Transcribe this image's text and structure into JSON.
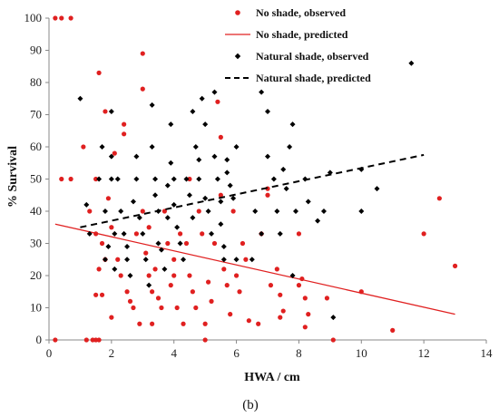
{
  "chart_data": {
    "type": "scatter",
    "xlabel": "HWA / cm",
    "ylabel": "% Survival",
    "caption": "(b)",
    "xlim": [
      0,
      14
    ],
    "ylim": [
      0,
      100
    ],
    "xticks": [
      "0",
      "2",
      "4",
      "6",
      "8",
      "10",
      "12",
      "14"
    ],
    "yticks": [
      "0",
      "10",
      "20",
      "30",
      "40",
      "50",
      "60",
      "70",
      "80",
      "90",
      "100"
    ],
    "grid": false,
    "legend_position": "top-right",
    "colors": {
      "no_shade": "#e02020",
      "natural_shade": "#000000",
      "axis": "#888888"
    },
    "series": [
      {
        "name": "No shade, observed",
        "kind": "points",
        "marker": "circle",
        "points": [
          [
            0.2,
            100
          ],
          [
            0.4,
            100
          ],
          [
            0.7,
            100
          ],
          [
            0.4,
            50
          ],
          [
            0.7,
            50
          ],
          [
            0.2,
            0
          ],
          [
            1.1,
            60
          ],
          [
            1.2,
            0
          ],
          [
            1.3,
            40
          ],
          [
            1.5,
            50
          ],
          [
            1.6,
            83
          ],
          [
            1.4,
            0
          ],
          [
            1.5,
            0
          ],
          [
            1.6,
            0
          ],
          [
            1.5,
            33
          ],
          [
            1.6,
            22
          ],
          [
            1.7,
            14
          ],
          [
            1.8,
            71
          ],
          [
            1.9,
            44
          ],
          [
            1.5,
            14
          ],
          [
            1.7,
            30
          ],
          [
            1.8,
            25
          ],
          [
            2.0,
            35
          ],
          [
            2.0,
            7
          ],
          [
            2.1,
            58
          ],
          [
            2.2,
            25
          ],
          [
            2.3,
            20
          ],
          [
            2.4,
            67
          ],
          [
            2.4,
            64
          ],
          [
            2.5,
            15
          ],
          [
            2.6,
            12
          ],
          [
            2.7,
            10
          ],
          [
            2.8,
            33
          ],
          [
            2.9,
            5
          ],
          [
            3.0,
            89
          ],
          [
            3.0,
            78
          ],
          [
            3.0,
            40
          ],
          [
            3.1,
            27
          ],
          [
            3.2,
            35
          ],
          [
            3.2,
            20
          ],
          [
            3.3,
            15
          ],
          [
            3.3,
            5
          ],
          [
            3.4,
            22
          ],
          [
            3.5,
            13
          ],
          [
            3.6,
            10
          ],
          [
            3.7,
            40
          ],
          [
            3.8,
            30
          ],
          [
            3.9,
            17
          ],
          [
            4.0,
            25
          ],
          [
            4.0,
            20
          ],
          [
            4.1,
            10
          ],
          [
            4.2,
            33
          ],
          [
            4.3,
            5
          ],
          [
            4.4,
            30
          ],
          [
            4.5,
            50
          ],
          [
            4.5,
            20
          ],
          [
            4.6,
            15
          ],
          [
            4.7,
            10
          ],
          [
            4.8,
            40
          ],
          [
            4.9,
            33
          ],
          [
            5.0,
            5
          ],
          [
            5.0,
            0
          ],
          [
            5.1,
            18
          ],
          [
            5.2,
            12
          ],
          [
            5.3,
            30
          ],
          [
            5.4,
            74
          ],
          [
            5.5,
            63
          ],
          [
            5.5,
            45
          ],
          [
            5.6,
            22
          ],
          [
            5.7,
            17
          ],
          [
            5.8,
            8
          ],
          [
            5.9,
            40
          ],
          [
            6.0,
            20
          ],
          [
            6.1,
            15
          ],
          [
            6.2,
            30
          ],
          [
            6.3,
            25
          ],
          [
            6.4,
            6
          ],
          [
            6.7,
            5
          ],
          [
            6.8,
            33
          ],
          [
            7.0,
            45
          ],
          [
            7.0,
            47
          ],
          [
            7.1,
            17
          ],
          [
            7.3,
            22
          ],
          [
            7.4,
            14
          ],
          [
            7.4,
            7
          ],
          [
            7.5,
            9
          ],
          [
            8.0,
            17
          ],
          [
            8.0,
            33
          ],
          [
            8.1,
            19
          ],
          [
            8.2,
            13
          ],
          [
            8.3,
            8
          ],
          [
            8.2,
            4
          ],
          [
            8.9,
            13
          ],
          [
            9.1,
            0
          ],
          [
            10.0,
            15
          ],
          [
            11.0,
            3
          ],
          [
            12.0,
            33
          ],
          [
            12.5,
            44
          ],
          [
            13.0,
            23
          ]
        ]
      },
      {
        "name": "No shade, predicted",
        "kind": "line",
        "style": "solid",
        "points": [
          [
            0.2,
            36
          ],
          [
            13.0,
            8
          ]
        ]
      },
      {
        "name": "Natural shade, observed",
        "kind": "points",
        "marker": "diamond",
        "points": [
          [
            1.0,
            75
          ],
          [
            1.2,
            42
          ],
          [
            1.3,
            33
          ],
          [
            1.6,
            50
          ],
          [
            1.7,
            60
          ],
          [
            1.8,
            40
          ],
          [
            1.8,
            25
          ],
          [
            1.9,
            29
          ],
          [
            2.0,
            71
          ],
          [
            2.0,
            57
          ],
          [
            2.0,
            50
          ],
          [
            2.1,
            33
          ],
          [
            2.1,
            22
          ],
          [
            2.2,
            50
          ],
          [
            2.3,
            40
          ],
          [
            2.4,
            33
          ],
          [
            2.5,
            29
          ],
          [
            2.5,
            25
          ],
          [
            2.6,
            20
          ],
          [
            2.7,
            43
          ],
          [
            2.8,
            57
          ],
          [
            2.8,
            50
          ],
          [
            2.9,
            38
          ],
          [
            3.0,
            33
          ],
          [
            3.1,
            25
          ],
          [
            3.2,
            17
          ],
          [
            3.3,
            73
          ],
          [
            3.3,
            60
          ],
          [
            3.4,
            50
          ],
          [
            3.4,
            45
          ],
          [
            3.5,
            40
          ],
          [
            3.5,
            30
          ],
          [
            3.6,
            28
          ],
          [
            3.7,
            22
          ],
          [
            3.8,
            48
          ],
          [
            3.8,
            38
          ],
          [
            3.9,
            67
          ],
          [
            3.9,
            55
          ],
          [
            4.0,
            50
          ],
          [
            4.0,
            42
          ],
          [
            4.1,
            35
          ],
          [
            4.2,
            30
          ],
          [
            4.3,
            25
          ],
          [
            4.4,
            50
          ],
          [
            4.5,
            45
          ],
          [
            4.6,
            38
          ],
          [
            4.6,
            71
          ],
          [
            4.7,
            60
          ],
          [
            4.8,
            56
          ],
          [
            4.8,
            50
          ],
          [
            4.9,
            75
          ],
          [
            5.0,
            67
          ],
          [
            5.0,
            44
          ],
          [
            5.1,
            40
          ],
          [
            5.2,
            33
          ],
          [
            5.3,
            77
          ],
          [
            5.3,
            57
          ],
          [
            5.4,
            50
          ],
          [
            5.5,
            43
          ],
          [
            5.5,
            36
          ],
          [
            5.6,
            29
          ],
          [
            5.6,
            25
          ],
          [
            5.7,
            56
          ],
          [
            5.7,
            52
          ],
          [
            5.8,
            48
          ],
          [
            5.9,
            44
          ],
          [
            6.0,
            60
          ],
          [
            6.0,
            25
          ],
          [
            6.5,
            25
          ],
          [
            6.6,
            40
          ],
          [
            6.8,
            33
          ],
          [
            6.8,
            77
          ],
          [
            7.0,
            71
          ],
          [
            7.0,
            57
          ],
          [
            7.2,
            50
          ],
          [
            7.3,
            40
          ],
          [
            7.4,
            33
          ],
          [
            7.5,
            53
          ],
          [
            7.6,
            47
          ],
          [
            7.7,
            60
          ],
          [
            7.8,
            67
          ],
          [
            7.8,
            20
          ],
          [
            7.9,
            40
          ],
          [
            8.2,
            50
          ],
          [
            8.3,
            43
          ],
          [
            8.6,
            37
          ],
          [
            8.8,
            40
          ],
          [
            9.0,
            52
          ],
          [
            9.1,
            7
          ],
          [
            10.0,
            53
          ],
          [
            10.0,
            40
          ],
          [
            10.5,
            47
          ],
          [
            11.6,
            86
          ]
        ]
      },
      {
        "name": "Natural shade, predicted",
        "kind": "line",
        "style": "dashed",
        "points": [
          [
            1.0,
            35
          ],
          [
            12.0,
            57.5
          ]
        ]
      }
    ]
  }
}
